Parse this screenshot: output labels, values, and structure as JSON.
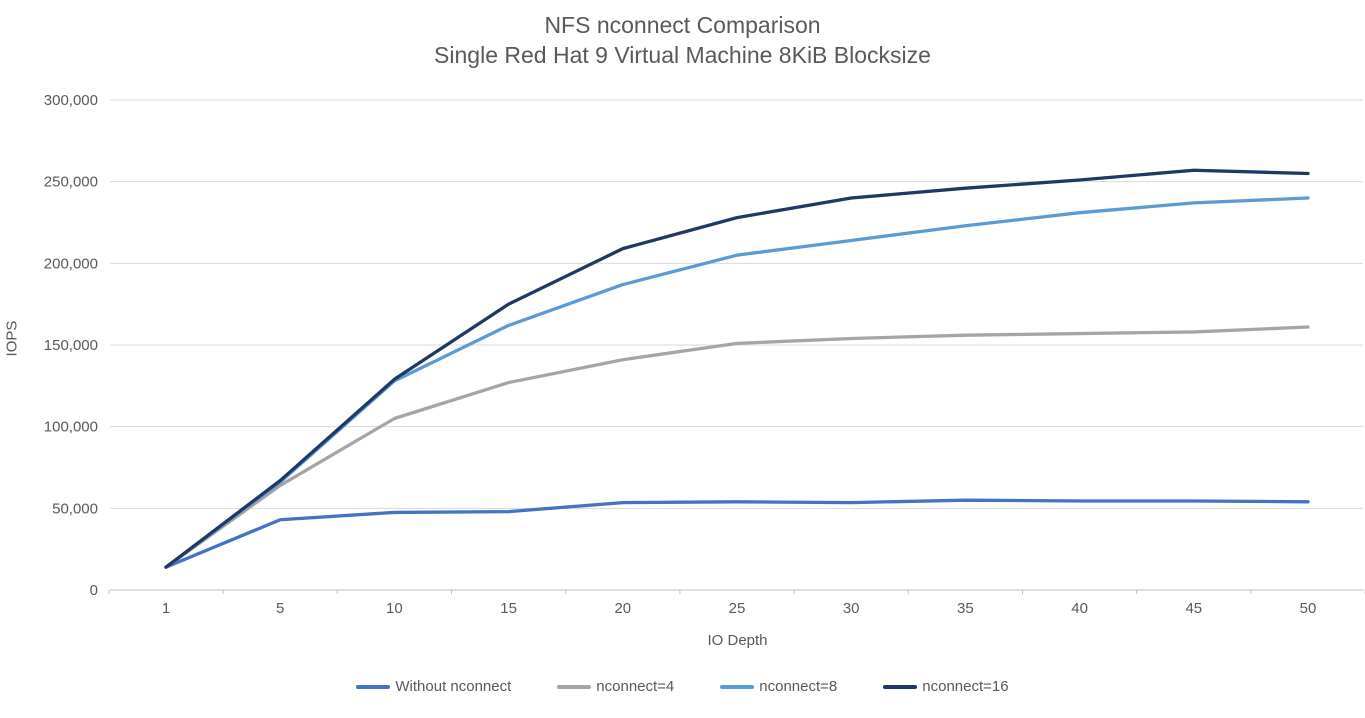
{
  "chart_data": {
    "type": "line",
    "title_line1": "NFS nconnect Comparison",
    "title_line2": "Single Red Hat 9 Virtual Machine 8KiB Blocksize",
    "xlabel": "IO Depth",
    "ylabel": "IOPS",
    "categories": [
      1,
      5,
      10,
      15,
      20,
      25,
      30,
      35,
      40,
      45,
      50
    ],
    "series": [
      {
        "name": "Without nconnect",
        "color": "#4472C4",
        "values": [
          14000,
          43000,
          47500,
          48000,
          53500,
          54000,
          53500,
          55000,
          54500,
          54500,
          54000
        ]
      },
      {
        "name": "nconnect=4",
        "color": "#A5A5A5",
        "values": [
          14000,
          64000,
          105000,
          127000,
          141000,
          151000,
          154000,
          156000,
          157000,
          158000,
          161000
        ]
      },
      {
        "name": "nconnect=8",
        "color": "#5B9BD5",
        "values": [
          14000,
          66000,
          128000,
          162000,
          187000,
          205000,
          214000,
          223000,
          231000,
          237000,
          240000
        ]
      },
      {
        "name": "nconnect=16",
        "color": "#1F3864",
        "values": [
          14000,
          67000,
          129000,
          175000,
          209000,
          228000,
          240000,
          246000,
          251000,
          257000,
          255000
        ]
      }
    ],
    "y_axis": {
      "min": 0,
      "max": 300000,
      "step": 50000,
      "tick_labels": [
        "0",
        "50,000",
        "100,000",
        "150,000",
        "200,000",
        "250,000",
        "300,000"
      ]
    },
    "grid": true,
    "legend_position": "bottom"
  },
  "colors": {
    "text": "#595959",
    "gridline": "#D9D9D9",
    "axis_line": "#BFBFBF",
    "background": "#FFFFFF"
  }
}
